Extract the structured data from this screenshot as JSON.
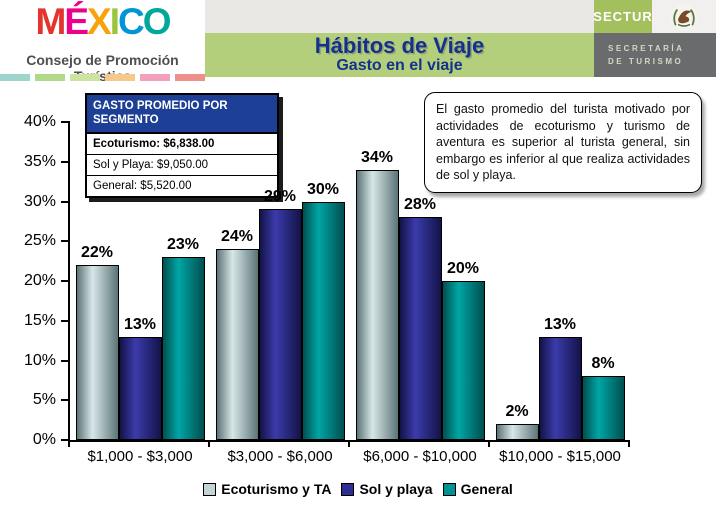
{
  "header": {
    "logo": {
      "brand_letters": [
        {
          "ch": "M",
          "color": "#e5332d"
        },
        {
          "ch": "É",
          "color": "#ec008c"
        },
        {
          "ch": "X",
          "color": "#f7a30b"
        },
        {
          "ch": "I",
          "color": "#9bc53d"
        },
        {
          "ch": "C",
          "color": "#0095d5"
        },
        {
          "ch": "O",
          "color": "#00a79b"
        }
      ],
      "subtitle": "Consejo de Promoción Turística",
      "strip_colors": [
        "#9fd4cc",
        "#b2d98a",
        "#cde3a1",
        "#f6c98a",
        "#f2a0bc",
        "#ef8f8a"
      ]
    },
    "title": "Hábitos de Viaje",
    "subtitle": "Gasto en el viaje",
    "sectur": {
      "badge": "SECTUR",
      "secretaria_line1": "SECRETARÍA",
      "secretaria_line2": "DE TURISMO"
    }
  },
  "avg_box": {
    "title": "GASTO PROMEDIO POR SEGMENTO",
    "rows": [
      {
        "label": "Ecoturismo: $6,838.00",
        "bold": true
      },
      {
        "label": "Sol y Playa: $9,050.00",
        "bold": false
      },
      {
        "label": "General: $5,520.00",
        "bold": false
      }
    ]
  },
  "note_box": {
    "text": "El gasto promedio del turista motivado por actividades de ecoturismo y turismo de aventura es superior al turista general, sin embargo es inferior al que realiza actividades de sol y playa."
  },
  "chart_data": {
    "type": "bar",
    "categories": [
      "$1,000 - $3,000",
      "$3,000 - $6,000",
      "$6,000 - $10,000",
      "$10,000 - $15,000"
    ],
    "series": [
      {
        "name": "Ecoturismo y TA",
        "values": [
          22,
          24,
          34,
          2
        ],
        "color_center": "#d7e7e8",
        "color_edge": "#5c7477",
        "swatch": "#c2d4d6"
      },
      {
        "name": "Sol y playa",
        "values": [
          13,
          29,
          28,
          13
        ],
        "color_center": "#3b3bab",
        "color_edge": "#131349",
        "swatch": "#2f2f91"
      },
      {
        "name": "General",
        "values": [
          23,
          30,
          20,
          8
        ],
        "color_center": "#00a5a5",
        "color_edge": "#014f4f",
        "swatch": "#009193"
      }
    ],
    "ylim": [
      0,
      40
    ],
    "ytick_step": 5,
    "yticks": [
      "0%",
      "5%",
      "10%",
      "15%",
      "20%",
      "25%",
      "30%",
      "35%",
      "40%"
    ],
    "value_suffix": "%",
    "grid": false,
    "legend_position": "bottom"
  }
}
